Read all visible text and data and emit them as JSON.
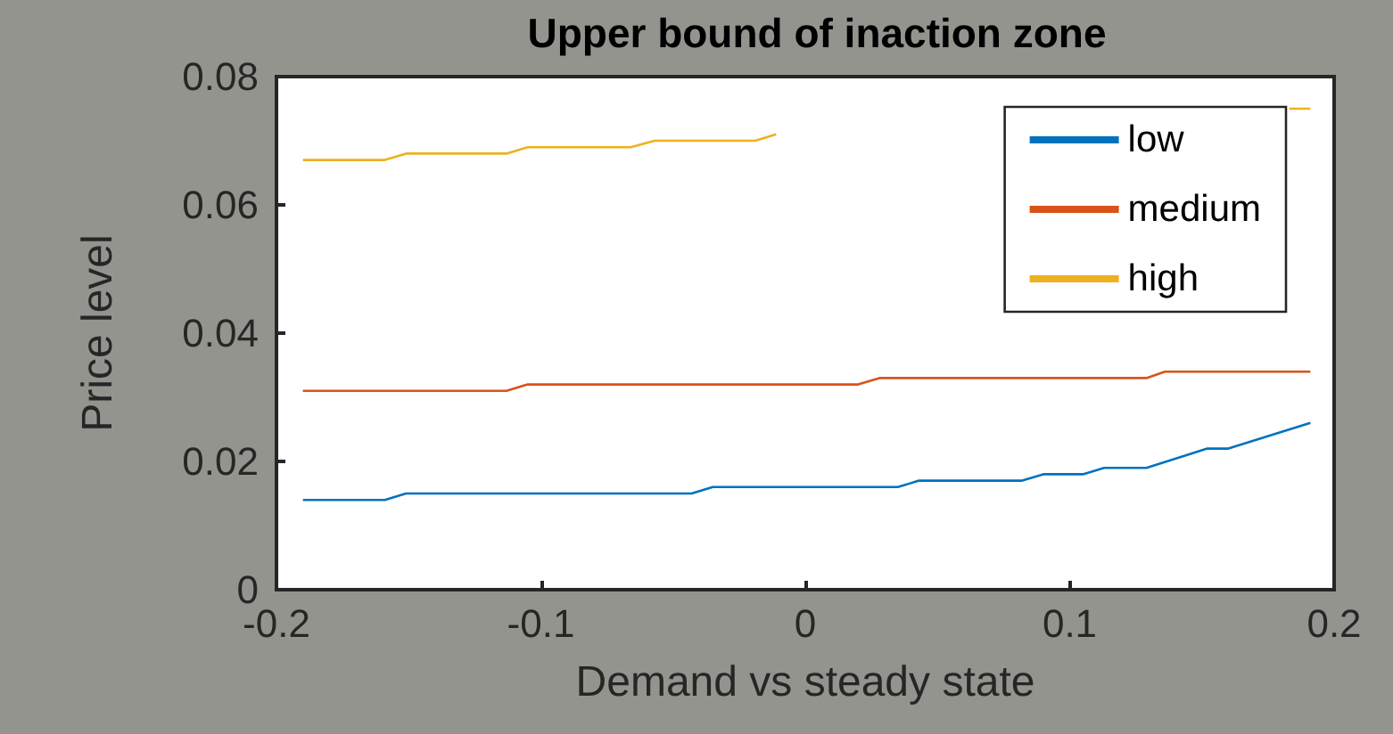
{
  "chart_data": {
    "type": "line",
    "title": "Upper bound of inaction zone",
    "xlabel": "Demand vs steady state",
    "ylabel": "Price level",
    "xlim": [
      -0.2,
      0.2
    ],
    "xticks": [
      -0.2,
      -0.1,
      0,
      0.1,
      0.2
    ],
    "ylim": [
      0,
      0.08
    ],
    "yticks": [
      0,
      0.02,
      0.04,
      0.06,
      0.08
    ],
    "grid": false,
    "legend": "top right",
    "marker": "none",
    "line_style": "solid",
    "series": [
      {
        "name": "low",
        "color": "#0072bd",
        "x": [
          -0.19,
          -0.159,
          -0.151,
          -0.043,
          -0.035,
          0.035,
          0.043,
          0.082,
          0.09,
          0.105,
          0.113,
          0.129,
          0.152,
          0.16,
          0.191
        ],
        "values": [
          0.014,
          0.014,
          0.015,
          0.015,
          0.016,
          0.016,
          0.017,
          0.017,
          0.018,
          0.018,
          0.019,
          0.019,
          0.022,
          0.022,
          0.026
        ]
      },
      {
        "name": "medium",
        "color": "#d95319",
        "x": [
          -0.19,
          -0.113,
          -0.105,
          0.02,
          0.028,
          0.129,
          0.136,
          0.191
        ],
        "values": [
          0.031,
          0.031,
          0.032,
          0.032,
          0.033,
          0.033,
          0.034,
          0.034
        ]
      },
      {
        "name": "high",
        "color": "#edb120",
        "x": [
          -0.19,
          -0.159,
          -0.151,
          -0.113,
          -0.105,
          -0.066,
          -0.057,
          -0.019,
          -0.011,
          0.0,
          0.183,
          0.191
        ],
        "values": [
          0.067,
          0.067,
          0.068,
          0.068,
          0.069,
          0.069,
          0.07,
          0.07,
          0.071,
          null,
          0.075,
          0.075
        ]
      }
    ]
  }
}
